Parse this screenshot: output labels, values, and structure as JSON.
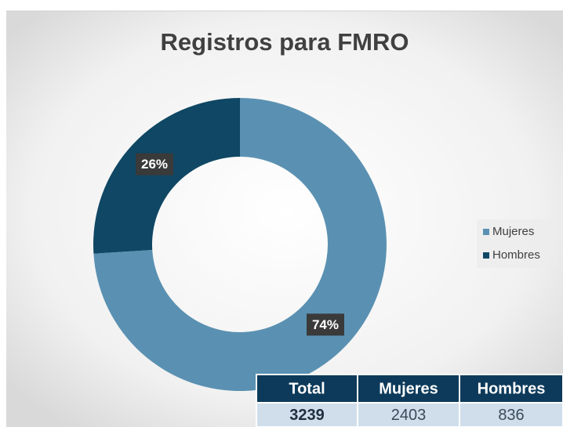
{
  "chart_data": {
    "type": "pie",
    "donut": true,
    "title": "Registros para FMRO",
    "categories": [
      "Mujeres",
      "Hombres"
    ],
    "values": [
      74,
      26
    ],
    "value_labels": [
      "74%",
      "26%"
    ],
    "colors": [
      "#5a91b2",
      "#0f4764"
    ],
    "legend": "right"
  },
  "table": {
    "header": [
      "Total",
      "Mujeres",
      "Hombres"
    ],
    "rows": [
      [
        "3239",
        "2403",
        "836"
      ]
    ]
  }
}
